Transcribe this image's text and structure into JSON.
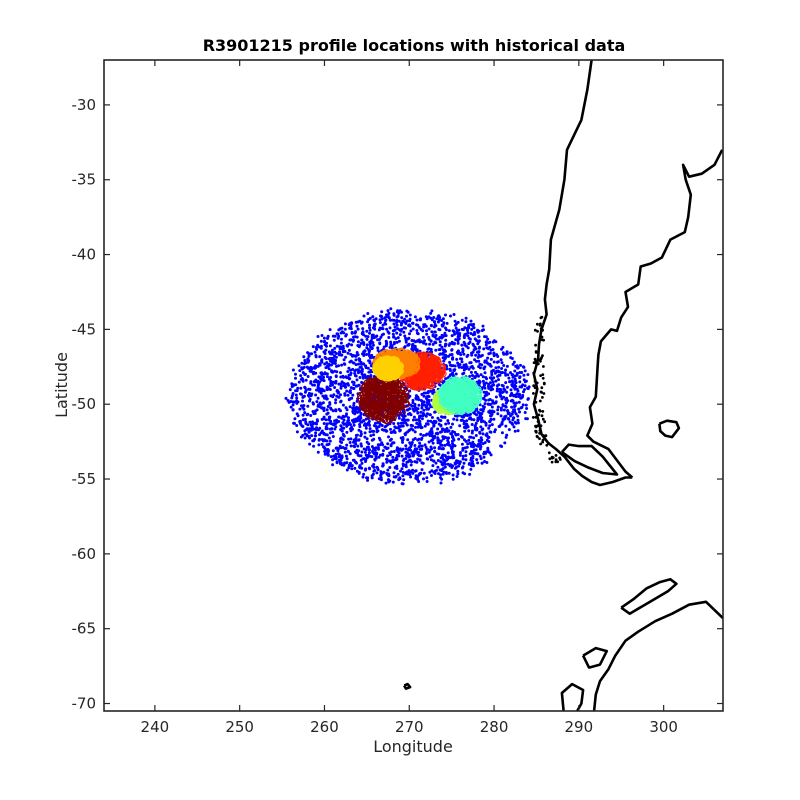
{
  "chart_data": {
    "type": "scatter",
    "title": "R3901215 profile locations with historical data",
    "xlabel": "Longitude",
    "ylabel": "Latitude",
    "xlim": [
      234,
      307
    ],
    "ylim": [
      -70.5,
      -27
    ],
    "xticks": [
      240,
      250,
      260,
      270,
      280,
      290,
      300
    ],
    "yticks": [
      -30,
      -35,
      -40,
      -45,
      -50,
      -55,
      -60,
      -65,
      -70
    ],
    "grid": false,
    "legend": "none",
    "historical_cloud": {
      "color": "#0000ff",
      "center": [
        270,
        -49.5
      ],
      "lon_range": [
        256,
        284
      ],
      "lat_range": [
        -54.5,
        -43
      ]
    },
    "float_profile_clusters": [
      {
        "color": "#800000",
        "center": [
          267,
          -49.6
        ],
        "lon_range": [
          264.5,
          270
        ],
        "lat_range": [
          -51,
          -48
        ]
      },
      {
        "color": "#ff2000",
        "center": [
          271.5,
          -47.8
        ],
        "lon_range": [
          269,
          274
        ],
        "lat_range": [
          -49,
          -46.8
        ]
      },
      {
        "color": "#ff8000",
        "center": [
          268.5,
          -47.3
        ],
        "lon_range": [
          266,
          271
        ],
        "lat_range": [
          -48.2,
          -46.5
        ]
      },
      {
        "color": "#ffd000",
        "center": [
          267.5,
          -47.6
        ],
        "lon_range": [
          266,
          269
        ],
        "lat_range": [
          -48.3,
          -47
        ]
      },
      {
        "color": "#b0ff40",
        "center": [
          274.5,
          -49.8
        ],
        "lon_range": [
          273,
          276
        ],
        "lat_range": [
          -50.5,
          -49
        ]
      },
      {
        "color": "#40ffc0",
        "center": [
          276,
          -49.4
        ],
        "lon_range": [
          274,
          278.5
        ],
        "lat_range": [
          -50.5,
          -48.3
        ]
      }
    ],
    "coastlines": [
      {
        "name": "South America west coast",
        "points": [
          [
            291.5,
            -27
          ],
          [
            291,
            -29
          ],
          [
            290.3,
            -31
          ],
          [
            288.6,
            -33
          ],
          [
            288.3,
            -35
          ],
          [
            287.7,
            -37
          ],
          [
            286.7,
            -39
          ],
          [
            286.5,
            -41
          ],
          [
            286.2,
            -42
          ],
          [
            286,
            -43
          ],
          [
            286.2,
            -44
          ],
          [
            285.6,
            -45
          ],
          [
            285.3,
            -46
          ],
          [
            285.2,
            -47
          ],
          [
            284.7,
            -48
          ],
          [
            285.1,
            -49
          ],
          [
            284.7,
            -50
          ],
          [
            285.2,
            -51
          ],
          [
            285.6,
            -52
          ],
          [
            286.4,
            -52.6
          ],
          [
            287.3,
            -53
          ],
          [
            288.3,
            -53.5
          ],
          [
            289.4,
            -54.3
          ],
          [
            290.4,
            -54.8
          ],
          [
            291.5,
            -55.2
          ],
          [
            292.5,
            -55.4
          ],
          [
            294,
            -55.2
          ],
          [
            295.5,
            -54.9
          ],
          [
            296.3,
            -54.9
          ]
        ]
      },
      {
        "name": "South America east coast",
        "points": [
          [
            306.9,
            -33
          ],
          [
            306,
            -34
          ],
          [
            304.5,
            -34.6
          ],
          [
            303,
            -34.8
          ],
          [
            302.3,
            -34
          ],
          [
            302.6,
            -35
          ],
          [
            303.2,
            -36
          ],
          [
            302.9,
            -37.5
          ],
          [
            302.5,
            -38.5
          ],
          [
            300.8,
            -39
          ],
          [
            299.8,
            -40.2
          ],
          [
            298.5,
            -40.6
          ],
          [
            297.3,
            -40.8
          ],
          [
            297,
            -42
          ],
          [
            295.5,
            -42.5
          ],
          [
            295.8,
            -43.5
          ],
          [
            295,
            -44.2
          ],
          [
            294.5,
            -45.1
          ],
          [
            293.8,
            -45
          ],
          [
            292.6,
            -45.8
          ],
          [
            292.3,
            -46.7
          ],
          [
            292.2,
            -47.6
          ],
          [
            292.1,
            -48.5
          ],
          [
            292,
            -49.5
          ],
          [
            291.3,
            -50.2
          ],
          [
            291.6,
            -51.3
          ],
          [
            291,
            -52.1
          ],
          [
            291.7,
            -52.5
          ],
          [
            293.5,
            -53
          ],
          [
            295.5,
            -54.5
          ],
          [
            296.3,
            -54.9
          ]
        ]
      },
      {
        "name": "Falkland Islands",
        "points": [
          [
            299.5,
            -51.3
          ],
          [
            300.4,
            -51.1
          ],
          [
            301.5,
            -51.2
          ],
          [
            301.8,
            -51.6
          ],
          [
            301,
            -52.2
          ],
          [
            300.2,
            -52.1
          ],
          [
            299.6,
            -51.8
          ],
          [
            299.5,
            -51.3
          ]
        ]
      },
      {
        "name": "South Shetland Islands",
        "points": [
          [
            295,
            -63.6
          ],
          [
            296.5,
            -63
          ],
          [
            298,
            -62.3
          ],
          [
            299.5,
            -61.9
          ],
          [
            300.8,
            -61.7
          ],
          [
            301.5,
            -62
          ],
          [
            300.5,
            -62.5
          ],
          [
            299,
            -63
          ],
          [
            297.5,
            -63.5
          ],
          [
            296,
            -64
          ],
          [
            295,
            -63.6
          ]
        ]
      },
      {
        "name": "Antarctic Peninsula",
        "points": [
          [
            307,
            -64.3
          ],
          [
            305,
            -63.2
          ],
          [
            303,
            -63.4
          ],
          [
            301,
            -64
          ],
          [
            299,
            -64.5
          ],
          [
            297,
            -65.2
          ],
          [
            295.5,
            -65.8
          ],
          [
            294.3,
            -66.8
          ],
          [
            293.5,
            -67.7
          ],
          [
            292.5,
            -68.5
          ],
          [
            292,
            -69.4
          ],
          [
            291.8,
            -70.5
          ]
        ]
      },
      {
        "name": "Adelaide Island",
        "points": [
          [
            290.5,
            -66.8
          ],
          [
            292,
            -66.3
          ],
          [
            293.3,
            -66.5
          ],
          [
            292.5,
            -67.4
          ],
          [
            291.2,
            -67.6
          ],
          [
            290.5,
            -66.8
          ]
        ]
      },
      {
        "name": "Alexander Island",
        "points": [
          [
            288.2,
            -70.5
          ],
          [
            288,
            -69.3
          ],
          [
            289.2,
            -68.7
          ],
          [
            290.5,
            -69.1
          ],
          [
            290.3,
            -70
          ],
          [
            289.8,
            -70.5
          ]
        ]
      },
      {
        "name": "Peter I Island",
        "points": [
          [
            269.4,
            -68.8
          ],
          [
            269.8,
            -68.7
          ],
          [
            270.1,
            -68.9
          ],
          [
            269.6,
            -69
          ],
          [
            269.4,
            -68.8
          ]
        ]
      },
      {
        "name": "Tierra del Fuego outline",
        "points": [
          [
            288,
            -53.2
          ],
          [
            289.5,
            -53.8
          ],
          [
            291,
            -54.2
          ],
          [
            292.8,
            -54.6
          ],
          [
            294.5,
            -54.7
          ],
          [
            292.8,
            -53.5
          ],
          [
            291.5,
            -52.8
          ],
          [
            290,
            -52.8
          ],
          [
            288.8,
            -52.7
          ],
          [
            288,
            -53.2
          ]
        ]
      }
    ]
  }
}
